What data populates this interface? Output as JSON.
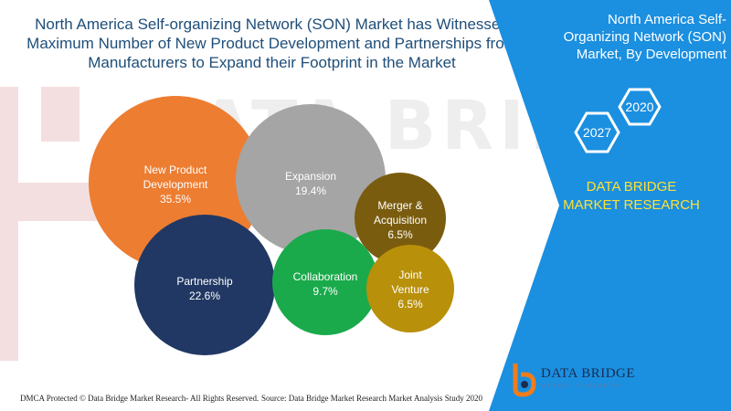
{
  "title": "North America Self-organizing Network (SON) Market has Witnessed Maximum Number of New Product Development and Partnerships from Manufacturers to Expand their Footprint in the Market",
  "side_panel": {
    "title": "North America Self-Organizing Network (SON) Market, By Development",
    "year_start": "2020",
    "year_end": "2027",
    "research_label": "DATA BRIDGE MARKET RESEARCH",
    "accent_color": "#1b8fe0",
    "research_color": "#ffe033"
  },
  "watermark": "DATA BRIDGE",
  "chart_data": {
    "type": "bubble",
    "series": [
      {
        "label": "New Product Development",
        "value": "35.5%",
        "color": "#ed7d31"
      },
      {
        "label": "Expansion",
        "value": "19.4%",
        "color": "#a5a5a5"
      },
      {
        "label": "Merger & Acquisition",
        "value": "6.5%",
        "color": "#7a5c0f"
      },
      {
        "label": "Partnership",
        "value": "22.6%",
        "color": "#213864"
      },
      {
        "label": "Collaboration",
        "value": "9.7%",
        "color": "#1aaa4b"
      },
      {
        "label": "Joint Venture",
        "value": "6.5%",
        "color": "#b8900a"
      }
    ]
  },
  "footer": {
    "left": "DMCA Protected © Data Bridge Market Research- All Rights Reserved.",
    "right": "Source: Data Bridge Market Research Market Analysis Study 2020"
  },
  "logo": {
    "name": "DATA BRIDGE",
    "tagline": "MARKET RESEARCH"
  }
}
